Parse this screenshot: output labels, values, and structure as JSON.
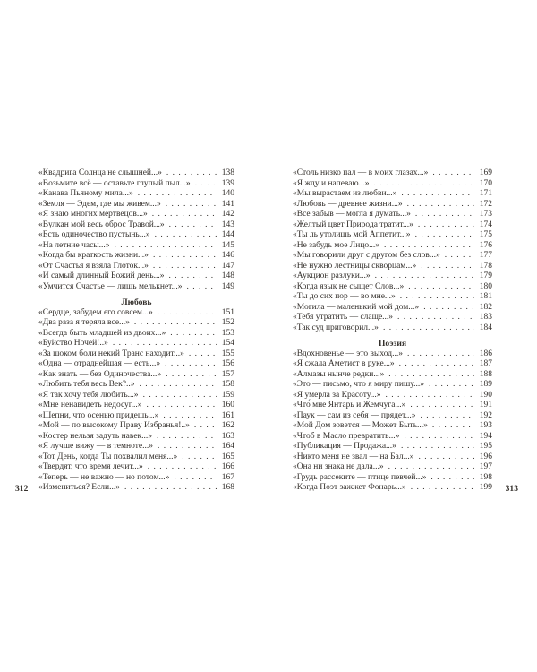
{
  "document": {
    "kind": "book-table-of-contents-spread",
    "language": "ru"
  },
  "colors": {
    "text": "#34302c",
    "background": "#ffffff"
  },
  "left_page": {
    "folio": "312",
    "rows": [
      {
        "title": "«Квадрига Солнца не слышней...»",
        "page": "138"
      },
      {
        "title": "«Возьмите всё — оставьте глупый пыл...»",
        "page": "139"
      },
      {
        "title": "«Канава Пьяному мила...»",
        "page": "140"
      },
      {
        "title": "«Земля — Эдем, где мы живем...»",
        "page": "141"
      },
      {
        "title": "«Я знаю многих мертвецов...»",
        "page": "142"
      },
      {
        "title": "«Вулкан мой весь оброс Травой...»",
        "page": "143"
      },
      {
        "title": "«Есть одиночество пустынь...»",
        "page": "144"
      },
      {
        "title": "«На летние часы...»",
        "page": "145"
      },
      {
        "title": "«Когда бы краткость жизни...»",
        "page": "146"
      },
      {
        "title": "«От Счастья я взяла Глоток...»",
        "page": "147"
      },
      {
        "title": "«И самый длинный Божий день...»",
        "page": "148"
      },
      {
        "title": "«Умчится Счастье — лишь мелькнет...»",
        "page": "149"
      },
      {
        "heading": "Любовь"
      },
      {
        "title": "«Сердце, забудем его совсем...»",
        "page": "151"
      },
      {
        "title": "«Два раза я теряла все...»",
        "page": "152"
      },
      {
        "title": "«Всегда быть младшей из двоих...»",
        "page": "153"
      },
      {
        "title": "«Буйство Ночей!..»",
        "page": "154"
      },
      {
        "title": "«За шоком боли некий Транс находит...»",
        "page": "155"
      },
      {
        "title": "«Одна — отраднейшая — есть...»",
        "page": "156"
      },
      {
        "title": "«Как знать — без Одиночества...»",
        "page": "157"
      },
      {
        "title": "«Любить тебя весь Век?..»",
        "page": "158"
      },
      {
        "title": "«Я так хочу тебя любить...»",
        "page": "159"
      },
      {
        "title": "«Мне ненавидеть недосуг...»",
        "page": "160"
      },
      {
        "title": "«Шепни, что осенью придешь...»",
        "page": "161"
      },
      {
        "title": "«Мой — по высокому Праву Избранья!..»",
        "page": "162"
      },
      {
        "title": "«Костер нельзя задуть навек...»",
        "page": "163"
      },
      {
        "title": "«Я лучше вижу — в темноте...»",
        "page": "164"
      },
      {
        "title": "«Тот День, когда Ты похвалил меня...»",
        "page": "165"
      },
      {
        "title": "«Твердят, что время лечит...»",
        "page": "166"
      },
      {
        "title": "«Теперь — не важно — но потом...»",
        "page": "167"
      },
      {
        "title": "«Измениться? Если...»",
        "page": "168"
      }
    ]
  },
  "right_page": {
    "folio": "313",
    "rows": [
      {
        "title": "«Столь низко пал — в моих глазах...»",
        "page": "169"
      },
      {
        "title": "«Я жду и напеваю...»",
        "page": "170"
      },
      {
        "title": "«Мы вырастаем из любви...»",
        "page": "171"
      },
      {
        "title": "«Любовь — древнее жизни...»",
        "page": "172"
      },
      {
        "title": "«Все забыв — могла я думать...»",
        "page": "173"
      },
      {
        "title": "«Желтый цвет Природа тратит...»",
        "page": "174"
      },
      {
        "title": "«Ты ль утолишь мой Аппетит...»",
        "page": "175"
      },
      {
        "title": "«Не забудь мое Лицо...»",
        "page": "176"
      },
      {
        "title": "«Мы говорили друг с другом без слов...»",
        "page": "177"
      },
      {
        "title": "«Не нужно лестницы скворцам...»",
        "page": "178"
      },
      {
        "title": "«Аукцион разлуки...»",
        "page": "179"
      },
      {
        "title": "«Когда язык не сыщет Слов...»",
        "page": "180"
      },
      {
        "title": "«Ты до сих пор — во мне...»",
        "page": "181"
      },
      {
        "title": "«Могила — маленький мой дом...»",
        "page": "182"
      },
      {
        "title": "«Тебя утратить — слаще...»",
        "page": "183"
      },
      {
        "title": "«Так суд приговорил...»",
        "page": "184"
      },
      {
        "heading": "Поэзия"
      },
      {
        "title": "«Вдохновенье — это выход...»",
        "page": "186"
      },
      {
        "title": "«Я сжала Аметист в руке...»",
        "page": "187"
      },
      {
        "title": "«Алмазы нынче редки...»",
        "page": "188"
      },
      {
        "title": "«Это — письмо, что я миру пишу...»",
        "page": "189"
      },
      {
        "title": "«Я умерла за Красоту...»",
        "page": "190"
      },
      {
        "title": "«Что́ мне Янтарь и Жемчуга...»",
        "page": "191"
      },
      {
        "title": "«Паук — сам из себя — прядет...»",
        "page": "192"
      },
      {
        "title": "«Мой Дом зовется — Может Быть...»",
        "page": "193"
      },
      {
        "title": "«Чтоб в Масло превратить...»",
        "page": "194"
      },
      {
        "title": "«Публикация — Продажа...»",
        "page": "195"
      },
      {
        "title": "«Никто меня не звал — на Бал...»",
        "page": "196"
      },
      {
        "title": "«Она ни знака не дала...»",
        "page": "197"
      },
      {
        "title": "«Грудь рассеките — птице певчей...»",
        "page": "198"
      },
      {
        "title": "«Когда Поэт зажжет Фонарь...»",
        "page": "199"
      }
    ]
  }
}
